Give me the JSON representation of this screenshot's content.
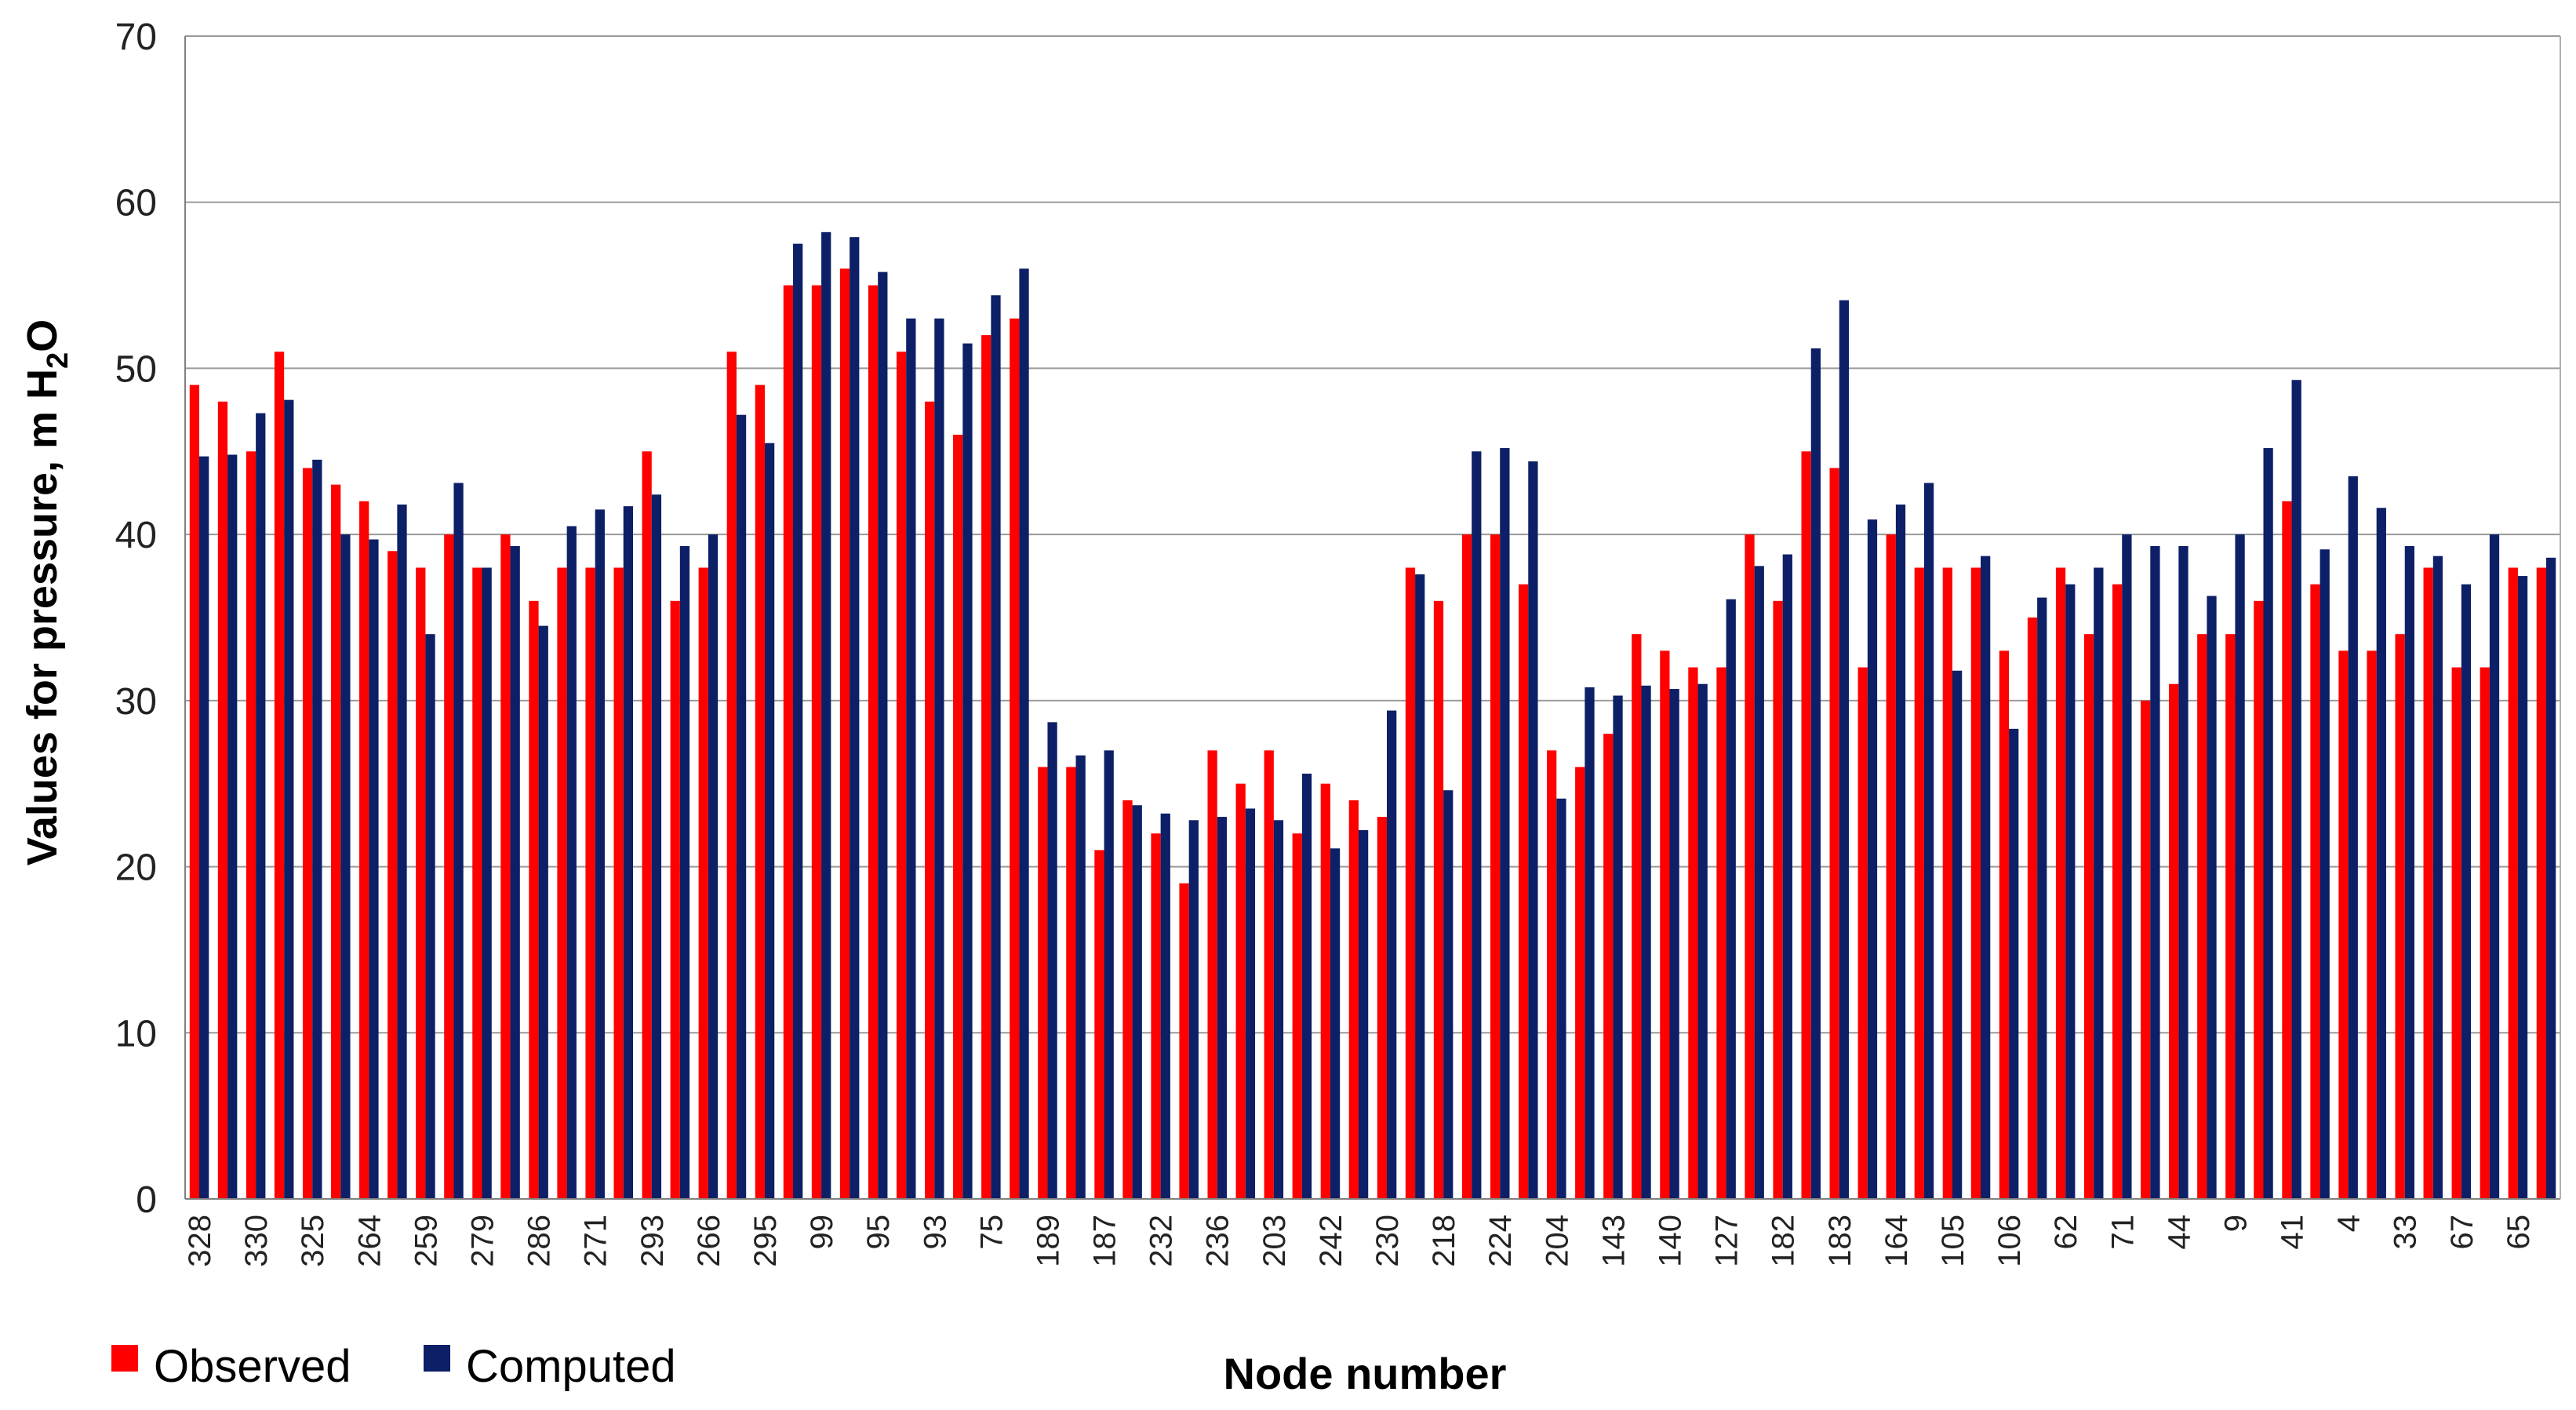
{
  "chart_data": {
    "type": "bar",
    "xlabel": "Node number",
    "ylabel_main": "Values for pressure, m H",
    "ylabel_sub": "2",
    "ylabel_tail": "O",
    "ylim": [
      0,
      70
    ],
    "yticks": [
      0,
      10,
      20,
      30,
      40,
      50,
      60,
      70
    ],
    "grid": true,
    "legend_position": "bottom-left",
    "categories": [
      "328",
      "",
      "330",
      "",
      "325",
      "",
      "264",
      "",
      "259",
      "",
      "279",
      "",
      "286",
      "",
      "271",
      "",
      "293",
      "",
      "266",
      "",
      "295",
      "",
      "99",
      "",
      "95",
      "",
      "93",
      "",
      "75",
      "",
      "189",
      "",
      "187",
      "",
      "232",
      "",
      "236",
      "",
      "203",
      "",
      "242",
      "",
      "230",
      "",
      "218",
      "",
      "224",
      "",
      "204",
      "",
      "143",
      "",
      "140",
      "",
      "127",
      "",
      "182",
      "",
      "183",
      "",
      "164",
      "",
      "105",
      "",
      "106",
      "",
      "62",
      "",
      "71",
      "",
      "44",
      "",
      "9",
      "",
      "41",
      "",
      "4",
      "",
      "33",
      "",
      "67",
      "",
      "65",
      ""
    ],
    "series": [
      {
        "name": "Observed",
        "color": "#ff0000",
        "values": [
          49,
          48,
          45,
          51,
          44,
          43,
          42,
          39,
          38,
          40,
          38,
          40,
          36,
          38,
          38,
          38,
          45,
          36,
          38,
          51,
          49,
          55,
          55,
          56,
          55,
          51,
          48,
          46,
          52,
          53,
          26,
          26,
          21,
          24,
          22,
          19,
          27,
          25,
          27,
          22,
          25,
          24,
          23,
          38,
          36,
          40,
          40,
          37,
          27,
          26,
          28,
          34,
          33,
          32,
          32,
          40,
          36,
          45,
          44,
          32,
          40,
          38,
          38,
          38,
          33,
          35,
          38,
          34,
          37,
          30,
          31,
          34,
          34,
          36,
          42,
          37,
          33,
          33,
          34,
          38,
          32,
          32,
          38,
          38
        ]
      },
      {
        "name": "Computed",
        "color": "#0d1f66",
        "values": [
          44.7,
          44.8,
          47.3,
          48.1,
          44.5,
          40.0,
          39.7,
          41.8,
          34.0,
          43.1,
          38.0,
          39.3,
          34.5,
          40.5,
          41.5,
          41.7,
          42.4,
          39.3,
          40.0,
          47.2,
          45.5,
          57.5,
          58.2,
          57.9,
          55.8,
          53.0,
          53.0,
          51.5,
          54.4,
          56.0,
          28.7,
          26.7,
          27.0,
          23.7,
          23.2,
          22.8,
          23.0,
          23.5,
          22.8,
          25.6,
          21.1,
          22.2,
          29.4,
          37.6,
          24.6,
          45.0,
          45.2,
          44.4,
          24.1,
          30.8,
          30.3,
          30.9,
          30.7,
          31.0,
          36.1,
          38.1,
          38.8,
          51.2,
          54.1,
          40.9,
          41.8,
          43.1,
          31.8,
          38.7,
          28.3,
          36.2,
          37.0,
          38.0,
          40.0,
          39.3,
          39.3,
          36.3,
          40.0,
          45.2,
          49.3,
          39.1,
          43.5,
          41.6,
          39.3,
          38.7,
          37.0,
          40.0,
          37.5,
          38.6
        ]
      }
    ]
  }
}
